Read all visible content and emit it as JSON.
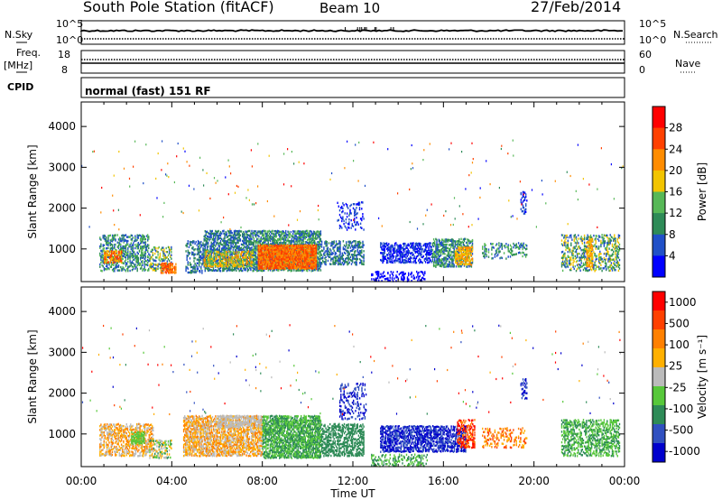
{
  "header": {
    "station_title": "South Pole Station (fitACF)",
    "beam_label": "Beam 10",
    "date": "27/Feb/2014"
  },
  "colors": {
    "power_scale": [
      "#0000ff",
      "#2050c8",
      "#2e8b57",
      "#57b857",
      "#f2c400",
      "#ff8c00",
      "#ff4000",
      "#ff0000"
    ],
    "velocity_scale": [
      "#0000cd",
      "#3050c0",
      "#2e8b57",
      "#57c83a",
      "#bbbbbb",
      "#ffb000",
      "#ff8000",
      "#ff4000",
      "#ff0000"
    ]
  },
  "chart_data": [
    {
      "type": "line",
      "name": "noise-panel",
      "left_label": "N.Sky",
      "right_label": "N.Search",
      "left_ticks": [
        "10^5",
        "10^0"
      ],
      "right_ticks": [
        "10^5",
        "10^0"
      ],
      "series": [
        {
          "name": "N.Sky",
          "style": "solid"
        },
        {
          "name": "N.Search",
          "style": "dotted"
        }
      ]
    },
    {
      "type": "line",
      "name": "frequency-panel",
      "left_label_line1": "Freq.",
      "left_label_line2": "[MHz]",
      "left_ticks": [
        "18",
        "8"
      ],
      "right_ticks": [
        "60",
        "0"
      ],
      "right_label": "Nave",
      "series": [
        {
          "name": "Freq",
          "style": "solid"
        },
        {
          "name": "Nave",
          "style": "dotted"
        }
      ]
    },
    {
      "type": "table",
      "name": "cpid-panel",
      "label": "CPID",
      "value": "normal (fast) 151 RF"
    },
    {
      "type": "heatmap",
      "name": "power-panel",
      "ylabel": "Slant Range [km]",
      "yticks": [
        "4000",
        "3000",
        "2000",
        "1000"
      ],
      "colorbar_label": "Power [dB]",
      "colorbar_ticks": [
        "28",
        "24",
        "20",
        "16",
        "12",
        "8",
        "4"
      ],
      "xlim": [
        "00:00",
        "24:00"
      ]
    },
    {
      "type": "heatmap",
      "name": "velocity-panel",
      "ylabel": "Slant Range [km]",
      "yticks": [
        "4000",
        "3000",
        "2000",
        "1000"
      ],
      "colorbar_label": "Velocity [m s⁻¹]",
      "colorbar_ticks": [
        "1000",
        "500",
        "100",
        "25",
        "-25",
        "-100",
        "-500",
        "-1000"
      ],
      "xlim": [
        "00:00",
        "24:00"
      ]
    }
  ],
  "x_axis": {
    "ticks": [
      "00:00",
      "04:00",
      "08:00",
      "12:00",
      "16:00",
      "20:00",
      "00:00"
    ],
    "label": "Time UT"
  }
}
